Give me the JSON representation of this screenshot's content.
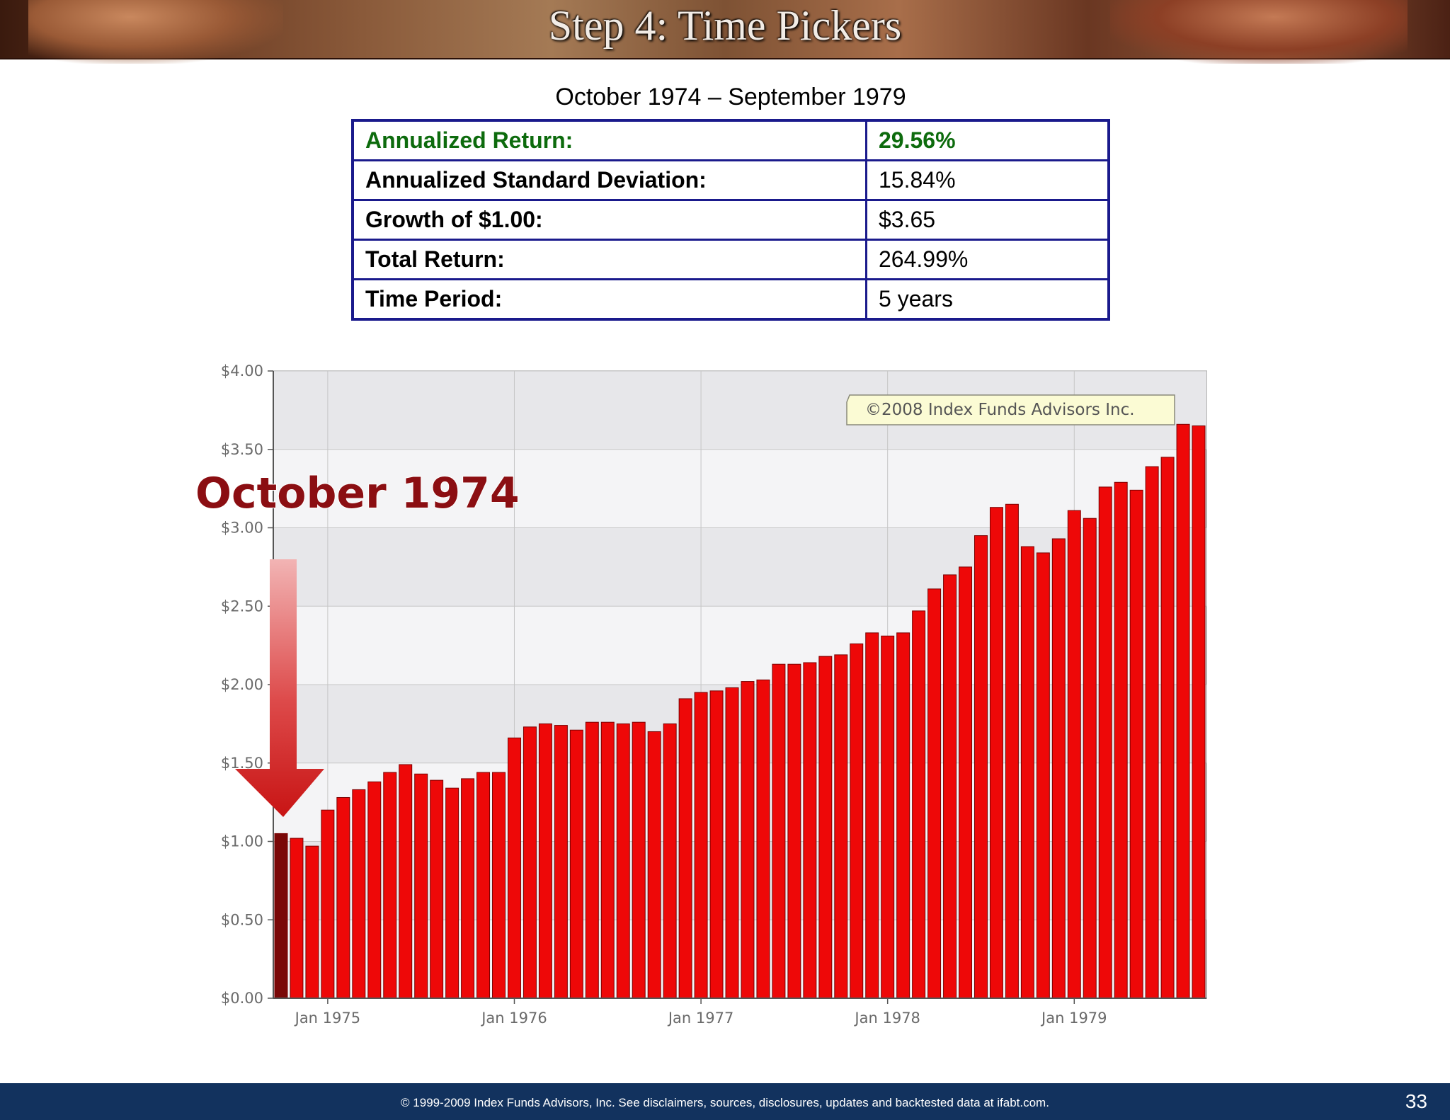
{
  "header": {
    "title": "Step 4: Time Pickers"
  },
  "period": "October 1974 – September 1979",
  "stats": [
    {
      "label": "Annualized Return:",
      "value": "29.56%",
      "highlight": true
    },
    {
      "label": "Annualized Standard Deviation:",
      "value": "15.84%"
    },
    {
      "label": "Growth of $1.00:",
      "value": "$3.65"
    },
    {
      "label": "Total Return:",
      "value": "264.99%"
    },
    {
      "label": "Time Period:",
      "value": "5 years"
    }
  ],
  "chart_data": {
    "type": "bar",
    "ylim": [
      0,
      4
    ],
    "y_ticks": [
      "$0.00",
      "$0.50",
      "$1.00",
      "$1.50",
      "$2.00",
      "$2.50",
      "$3.00",
      "$3.50",
      "$4.00"
    ],
    "x_tick_labels": [
      "Jan 1975",
      "Jan 1976",
      "Jan 1977",
      "Jan 1978",
      "Jan 1979"
    ],
    "grid": true,
    "copyright_note": "©2008 Index Funds Advisors Inc.",
    "callout": "October 1974",
    "start_month": "Oct 1974",
    "end_month": "Sep 1979",
    "values": [
      1.05,
      1.02,
      0.97,
      1.2,
      1.28,
      1.33,
      1.38,
      1.44,
      1.49,
      1.43,
      1.39,
      1.34,
      1.4,
      1.44,
      1.44,
      1.66,
      1.73,
      1.75,
      1.74,
      1.71,
      1.76,
      1.76,
      1.75,
      1.76,
      1.7,
      1.75,
      1.91,
      1.95,
      1.96,
      1.98,
      2.02,
      2.03,
      2.13,
      2.13,
      2.14,
      2.18,
      2.19,
      2.26,
      2.33,
      2.31,
      2.33,
      2.47,
      2.61,
      2.7,
      2.75,
      2.95,
      3.13,
      3.15,
      2.88,
      2.84,
      2.93,
      3.11,
      3.06,
      3.26,
      3.29,
      3.24,
      3.39,
      3.45,
      3.66,
      3.65
    ],
    "colors": {
      "bar": "#ee0808",
      "first_bar": "#7a0808",
      "callout_text": "#8b0e12"
    }
  },
  "footer": {
    "text": "© 1999-2009 Index Funds Advisors, Inc. See disclaimers, sources, disclosures, updates and backtested data at ifabt.com.",
    "page": "33"
  }
}
